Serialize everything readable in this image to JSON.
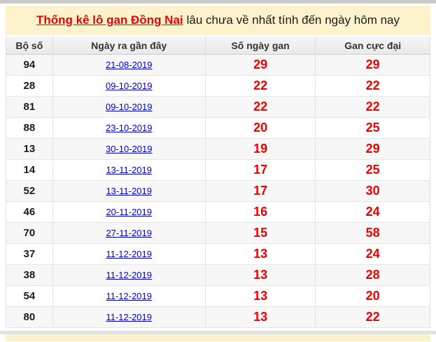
{
  "header": {
    "title_link": "Thống kê lô gan Đồng Nai",
    "title_suffix": "lâu chưa về nhất tính đến ngày hôm nay"
  },
  "table": {
    "columns": [
      "Bộ số",
      "Ngày ra gần đây",
      "Số ngày gan",
      "Gan cực đại"
    ],
    "rows": [
      {
        "number": "94",
        "last_date": "21-08-2019",
        "gan_days": "29",
        "max_gan": "29"
      },
      {
        "number": "28",
        "last_date": "09-10-2019",
        "gan_days": "22",
        "max_gan": "22"
      },
      {
        "number": "81",
        "last_date": "09-10-2019",
        "gan_days": "22",
        "max_gan": "22"
      },
      {
        "number": "88",
        "last_date": "23-10-2019",
        "gan_days": "20",
        "max_gan": "25"
      },
      {
        "number": "13",
        "last_date": "30-10-2019",
        "gan_days": "19",
        "max_gan": "29"
      },
      {
        "number": "14",
        "last_date": "13-11-2019",
        "gan_days": "17",
        "max_gan": "25"
      },
      {
        "number": "52",
        "last_date": "13-11-2019",
        "gan_days": "17",
        "max_gan": "30"
      },
      {
        "number": "46",
        "last_date": "20-11-2019",
        "gan_days": "16",
        "max_gan": "24"
      },
      {
        "number": "70",
        "last_date": "27-11-2019",
        "gan_days": "15",
        "max_gan": "58"
      },
      {
        "number": "37",
        "last_date": "11-12-2019",
        "gan_days": "13",
        "max_gan": "24"
      },
      {
        "number": "38",
        "last_date": "11-12-2019",
        "gan_days": "13",
        "max_gan": "28"
      },
      {
        "number": "54",
        "last_date": "11-12-2019",
        "gan_days": "13",
        "max_gan": "20"
      },
      {
        "number": "80",
        "last_date": "11-12-2019",
        "gan_days": "13",
        "max_gan": "22"
      }
    ]
  },
  "colors": {
    "accent_red": "#ee0000",
    "link_blue": "#0000cc",
    "highlight_yellow": "#fcf3cd",
    "number_black": "#1a1a1a"
  }
}
